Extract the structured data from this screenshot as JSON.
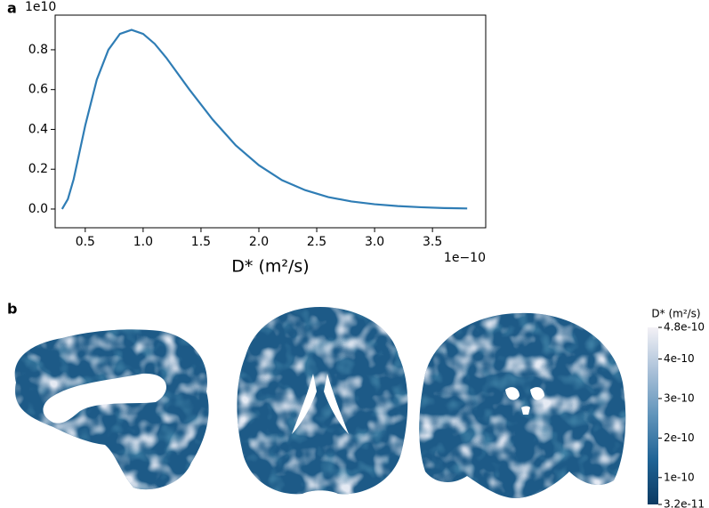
{
  "chart_data": [
    {
      "type": "line",
      "panel_label": "a",
      "x": [
        0.3,
        0.35,
        0.4,
        0.5,
        0.6,
        0.7,
        0.8,
        0.9,
        1.0,
        1.1,
        1.2,
        1.4,
        1.6,
        1.8,
        2.0,
        2.2,
        2.4,
        2.6,
        2.8,
        3.0,
        3.2,
        3.4,
        3.6,
        3.8
      ],
      "values": [
        0.0,
        0.05,
        0.15,
        0.42,
        0.65,
        0.8,
        0.88,
        0.9,
        0.88,
        0.83,
        0.76,
        0.6,
        0.45,
        0.32,
        0.22,
        0.145,
        0.095,
        0.06,
        0.038,
        0.024,
        0.015,
        0.009,
        0.005,
        0.003
      ],
      "color": "#2f7db5",
      "x_label": "D* (m²/s)",
      "x_offset": "1e−10",
      "y_offset": "1e10",
      "xlim": [
        0.24,
        3.96
      ],
      "ylim": [
        -0.094,
        0.974
      ],
      "xticks": [
        0.5,
        {
          "value": 1.0,
          "label": "1.0"
        },
        1.5,
        {
          "value": 2.0,
          "label": "2.0"
        },
        2.5,
        {
          "value": 3.0,
          "label": "3.0"
        },
        3.5
      ],
      "yticks": [
        {
          "value": 0,
          "label": "0.0"
        },
        0.2,
        0.4,
        0.6,
        0.8
      ],
      "grid": false
    },
    {
      "type": "colorbar",
      "panel_label": "b",
      "title": "D* (m²/s)",
      "lim": [
        3.2e-11,
        4.8e-10
      ],
      "ticks": [
        4.8e-10,
        4e-10,
        3e-10,
        2e-10,
        1e-10,
        3.2e-11
      ],
      "colors": [
        "#0c3a62",
        "#1f6395",
        "#5f93ba",
        "#a9c0d8",
        "#f3f1f6"
      ]
    }
  ]
}
